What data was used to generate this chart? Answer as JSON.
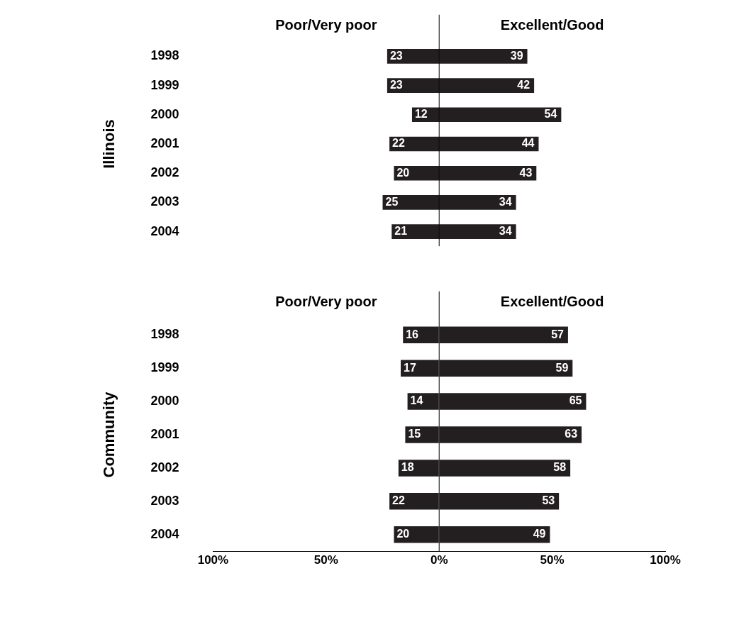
{
  "chart_data": [
    {
      "type": "bar",
      "orientation": "horizontal",
      "ylabel": "Illinois",
      "categories": [
        "1998",
        "1999",
        "2000",
        "2001",
        "2002",
        "2003",
        "2004"
      ],
      "series": [
        {
          "name": "Poor/Very poor",
          "color": "#231f20",
          "values": [
            23,
            23,
            12,
            22,
            20,
            25,
            21
          ],
          "base": [
            -23,
            -23,
            -12,
            -22,
            -20,
            -25,
            -21
          ]
        },
        {
          "name": "Excellent/Good",
          "color": "#231f20",
          "values": [
            39,
            42,
            54,
            44,
            43,
            34,
            34
          ]
        }
      ],
      "data_labels": true,
      "xlim": [
        -100,
        100
      ],
      "tick_labels": "y",
      "ref_lines": [
        {
          "axis": "x",
          "value": 0
        }
      ]
    },
    {
      "type": "bar",
      "orientation": "horizontal",
      "ylabel": "Community",
      "categories": [
        "1998",
        "1999",
        "2000",
        "2001",
        "2002",
        "2003",
        "2004"
      ],
      "series": [
        {
          "name": "Poor/Very poor",
          "color": "#231f20",
          "values": [
            16,
            17,
            14,
            15,
            18,
            22,
            20
          ],
          "base": [
            -16,
            -17,
            -14,
            -15,
            -18,
            -22,
            -20
          ]
        },
        {
          "name": "Excellent/Good",
          "color": "#231f20",
          "values": [
            57,
            59,
            65,
            63,
            58,
            53,
            49
          ]
        }
      ],
      "data_labels": true,
      "xlim": [
        -100,
        100
      ],
      "xticks": [
        {
          "value": -100,
          "label": "100%"
        },
        {
          "value": -50,
          "label": "50%"
        },
        {
          "value": 0,
          "label": "0%"
        },
        {
          "value": 50,
          "label": "50%"
        },
        {
          "value": 100,
          "label": "100%"
        }
      ],
      "ref_lines": [
        {
          "axis": "x",
          "value": 0
        }
      ]
    }
  ]
}
